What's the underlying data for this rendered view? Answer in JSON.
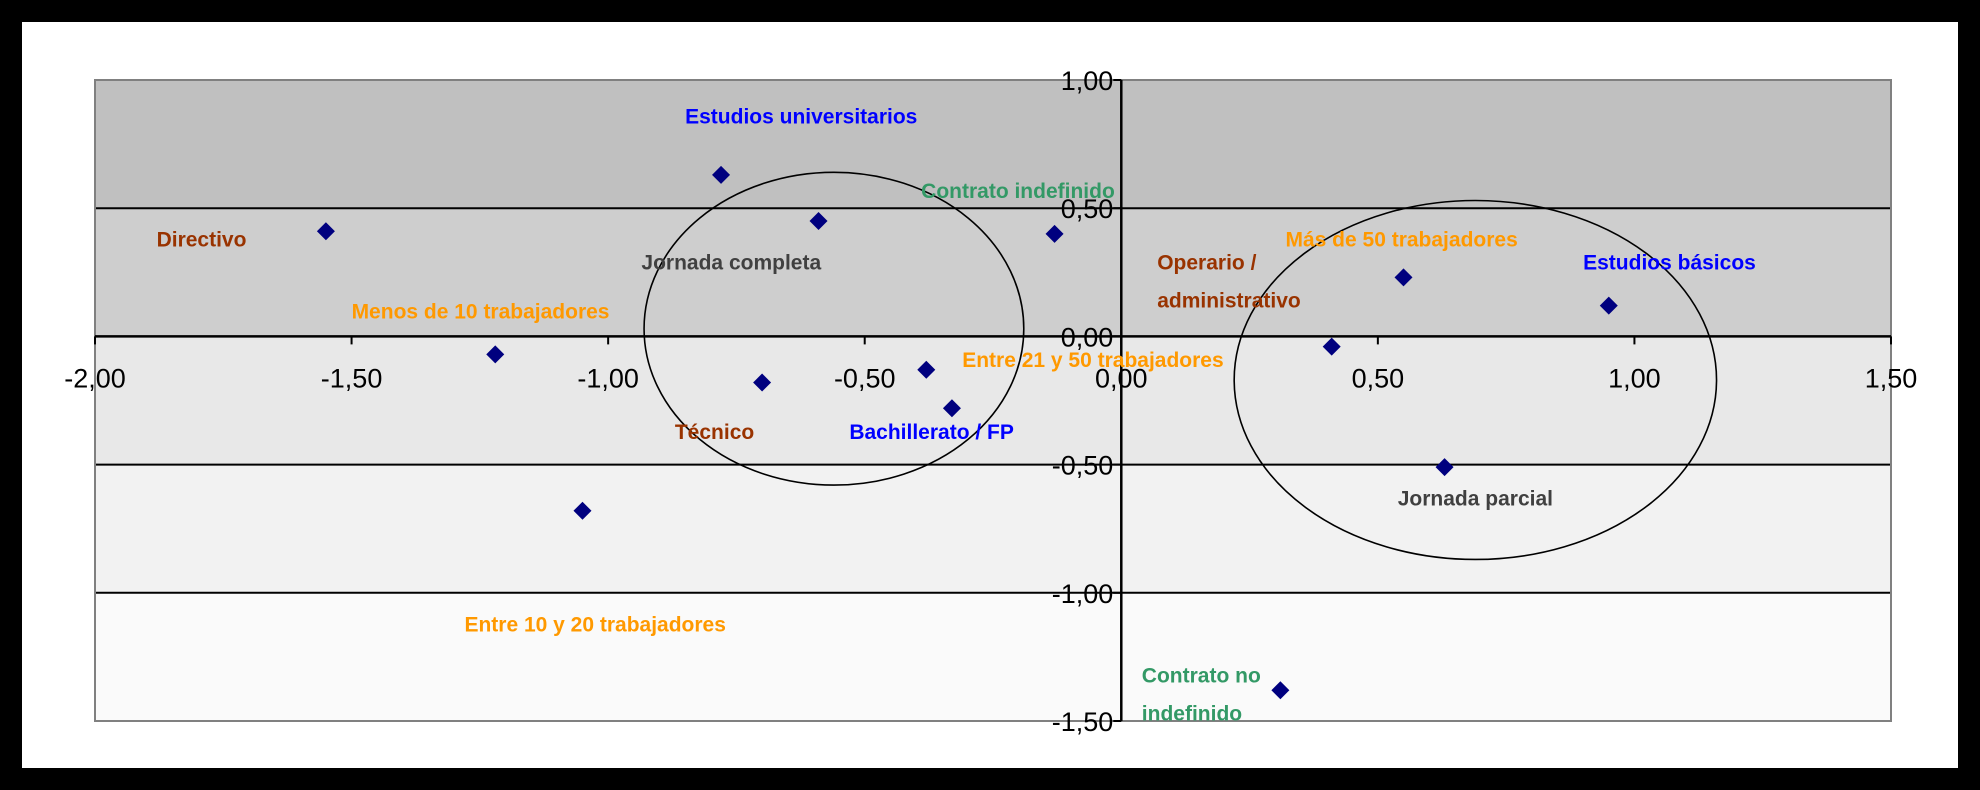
{
  "chart_data": {
    "type": "scatter",
    "title": "",
    "xlabel": "",
    "ylabel": "",
    "xlim": [
      -2.0,
      1.5
    ],
    "ylim": [
      -1.5,
      1.0
    ],
    "x_ticks": [
      -2.0,
      -1.5,
      -1.0,
      -0.5,
      0.0,
      0.5,
      1.0,
      1.5
    ],
    "x_tick_labels": [
      "-2,00",
      "-1,50",
      "-1,00",
      "-0,50",
      "0,00",
      "0,50",
      "1,00",
      "1,50"
    ],
    "y_ticks": [
      1.0,
      0.5,
      0.0,
      -0.5,
      -1.0,
      -1.5
    ],
    "y_tick_labels": [
      "1,00",
      "0,50",
      "0,00",
      "-0,50",
      "-1,00",
      "-1,50"
    ],
    "grid": "horizontal",
    "marker_color": "#00007F",
    "background_bands": [
      "#C0C0C0",
      "#CECECE",
      "#E8E8E8",
      "#F2F2F2",
      "#FAFAFA"
    ],
    "points": [
      {
        "x": -1.55,
        "y": 0.41
      },
      {
        "x": -0.78,
        "y": 0.63
      },
      {
        "x": -0.59,
        "y": 0.45
      },
      {
        "x": -0.13,
        "y": 0.4
      },
      {
        "x": -1.22,
        "y": -0.07
      },
      {
        "x": -0.7,
        "y": -0.18
      },
      {
        "x": -0.38,
        "y": -0.13
      },
      {
        "x": -0.33,
        "y": -0.28
      },
      {
        "x": -1.05,
        "y": -0.68
      },
      {
        "x": 0.41,
        "y": -0.04
      },
      {
        "x": 0.55,
        "y": 0.23
      },
      {
        "x": 0.95,
        "y": 0.12
      },
      {
        "x": 0.63,
        "y": -0.51
      },
      {
        "x": 0.31,
        "y": -1.38
      }
    ],
    "labels": [
      {
        "lines": [
          "Estudios universitarios"
        ],
        "color": "#0000FF",
        "x": -0.85,
        "y": 0.83
      },
      {
        "lines": [
          "Directivo"
        ],
        "color": "#993300",
        "x": -1.88,
        "y": 0.35
      },
      {
        "lines": [
          "Menos de 10 trabajadores"
        ],
        "color": "#FF9900",
        "x": -1.5,
        "y": 0.07
      },
      {
        "lines": [
          "Contrato indefinido"
        ],
        "color": "#339966",
        "x": -0.39,
        "y": 0.54
      },
      {
        "lines": [
          "Técnico"
        ],
        "color": "#993300",
        "x": -0.87,
        "y": -0.4
      },
      {
        "lines": [
          "Bachillerato / FP"
        ],
        "color": "#0000FF",
        "x": -0.53,
        "y": -0.4
      },
      {
        "lines": [
          "Entre 21 y 50 trabajadores"
        ],
        "color": "#FF9900",
        "x": -0.31,
        "y": -0.12
      },
      {
        "lines": [
          "Entre 10 y 20 trabajadores"
        ],
        "color": "#FF9900",
        "x": -1.28,
        "y": -1.15
      },
      {
        "lines": [
          "Operario /",
          "administrativo"
        ],
        "color": "#993300",
        "x": 0.07,
        "y": 0.26
      },
      {
        "lines": [
          "Más de 50 trabajadores"
        ],
        "color": "#FF9900",
        "x": 0.32,
        "y": 0.35
      },
      {
        "lines": [
          "Estudios básicos"
        ],
        "color": "#0000FF",
        "x": 0.9,
        "y": 0.26
      },
      {
        "lines": [
          "Contrato no",
          "indefinido"
        ],
        "color": "#339966",
        "x": 0.04,
        "y": -1.35
      }
    ],
    "groups": [
      {
        "label": "Jornada completa",
        "x": -0.56,
        "y": 0.03,
        "rx": 0.37,
        "ry": 0.61,
        "label_x": -0.76,
        "label_y": 0.26
      },
      {
        "label": "Jornada parcial",
        "x": 0.69,
        "y": -0.17,
        "rx": 0.47,
        "ry": 0.7,
        "label_x": 0.69,
        "label_y": -0.66
      }
    ]
  }
}
